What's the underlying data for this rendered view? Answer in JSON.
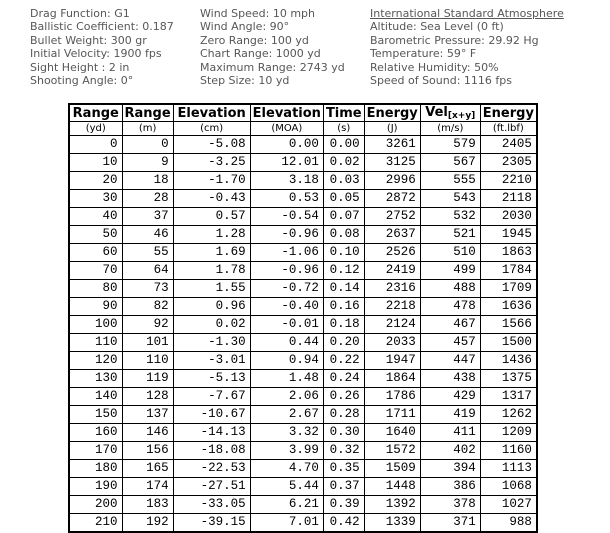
{
  "colors": {
    "background": "#ffffff",
    "info_text": "#575757",
    "table_text": "#000000",
    "table_border": "#000000"
  },
  "info": {
    "ballistics": {
      "lines": [
        "Drag Function: G1",
        "Ballistic Coefficient: 0.187",
        "Bullet Weight: 300 gr",
        "Initial Velocity: 1900 fps",
        "Sight Height : 2 in",
        "Shooting Angle: 0°"
      ]
    },
    "conditions": {
      "lines": [
        "Wind Speed: 10 mph",
        "Wind Angle: 90°",
        "Zero Range: 100 yd",
        "Chart Range: 1000 yd",
        "Maximum Range: 2743 yd",
        "Step Size: 10 yd"
      ]
    },
    "atmosphere": {
      "title": "International Standard Atmosphere",
      "lines": [
        "Altitude: Sea Level (0 ft)",
        "Barometric Pressure: 29.92 Hg",
        "Temperature: 59° F",
        "Relative Humidity: 50%",
        "Speed of Sound: 1116 fps"
      ]
    }
  },
  "table": {
    "columns": [
      {
        "label": "Range",
        "unit": "(yd)"
      },
      {
        "label": "Range",
        "unit": "(m)"
      },
      {
        "label": "Elevation",
        "unit": "(cm)"
      },
      {
        "label": "Elevation",
        "unit": "(MOA)"
      },
      {
        "label": "Time",
        "unit": "(s)"
      },
      {
        "label": "Energy",
        "unit": "(J)"
      },
      {
        "label": "Vel",
        "label_sub": "[x+y]",
        "unit": "(m/s)"
      },
      {
        "label": "Energy",
        "unit": "(ft.lbf)"
      }
    ],
    "rows": [
      [
        "0",
        "0",
        "-5.08",
        "0.00",
        "0.00",
        "3261",
        "579",
        "2405"
      ],
      [
        "10",
        "9",
        "-3.25",
        "12.01",
        "0.02",
        "3125",
        "567",
        "2305"
      ],
      [
        "20",
        "18",
        "-1.70",
        "3.18",
        "0.03",
        "2996",
        "555",
        "2210"
      ],
      [
        "30",
        "28",
        "-0.43",
        "0.53",
        "0.05",
        "2872",
        "543",
        "2118"
      ],
      [
        "40",
        "37",
        "0.57",
        "-0.54",
        "0.07",
        "2752",
        "532",
        "2030"
      ],
      [
        "50",
        "46",
        "1.28",
        "-0.96",
        "0.08",
        "2637",
        "521",
        "1945"
      ],
      [
        "60",
        "55",
        "1.69",
        "-1.06",
        "0.10",
        "2526",
        "510",
        "1863"
      ],
      [
        "70",
        "64",
        "1.78",
        "-0.96",
        "0.12",
        "2419",
        "499",
        "1784"
      ],
      [
        "80",
        "73",
        "1.55",
        "-0.72",
        "0.14",
        "2316",
        "488",
        "1709"
      ],
      [
        "90",
        "82",
        "0.96",
        "-0.40",
        "0.16",
        "2218",
        "478",
        "1636"
      ],
      [
        "100",
        "92",
        "0.02",
        "-0.01",
        "0.18",
        "2124",
        "467",
        "1566"
      ],
      [
        "110",
        "101",
        "-1.30",
        "0.44",
        "0.20",
        "2033",
        "457",
        "1500"
      ],
      [
        "120",
        "110",
        "-3.01",
        "0.94",
        "0.22",
        "1947",
        "447",
        "1436"
      ],
      [
        "130",
        "119",
        "-5.13",
        "1.48",
        "0.24",
        "1864",
        "438",
        "1375"
      ],
      [
        "140",
        "128",
        "-7.67",
        "2.06",
        "0.26",
        "1786",
        "429",
        "1317"
      ],
      [
        "150",
        "137",
        "-10.67",
        "2.67",
        "0.28",
        "1711",
        "419",
        "1262"
      ],
      [
        "160",
        "146",
        "-14.13",
        "3.32",
        "0.30",
        "1640",
        "411",
        "1209"
      ],
      [
        "170",
        "156",
        "-18.08",
        "3.99",
        "0.32",
        "1572",
        "402",
        "1160"
      ],
      [
        "180",
        "165",
        "-22.53",
        "4.70",
        "0.35",
        "1509",
        "394",
        "1113"
      ],
      [
        "190",
        "174",
        "-27.51",
        "5.44",
        "0.37",
        "1448",
        "386",
        "1068"
      ],
      [
        "200",
        "183",
        "-33.05",
        "6.21",
        "0.39",
        "1392",
        "378",
        "1027"
      ],
      [
        "210",
        "192",
        "-39.15",
        "7.01",
        "0.42",
        "1339",
        "371",
        "988"
      ]
    ]
  }
}
